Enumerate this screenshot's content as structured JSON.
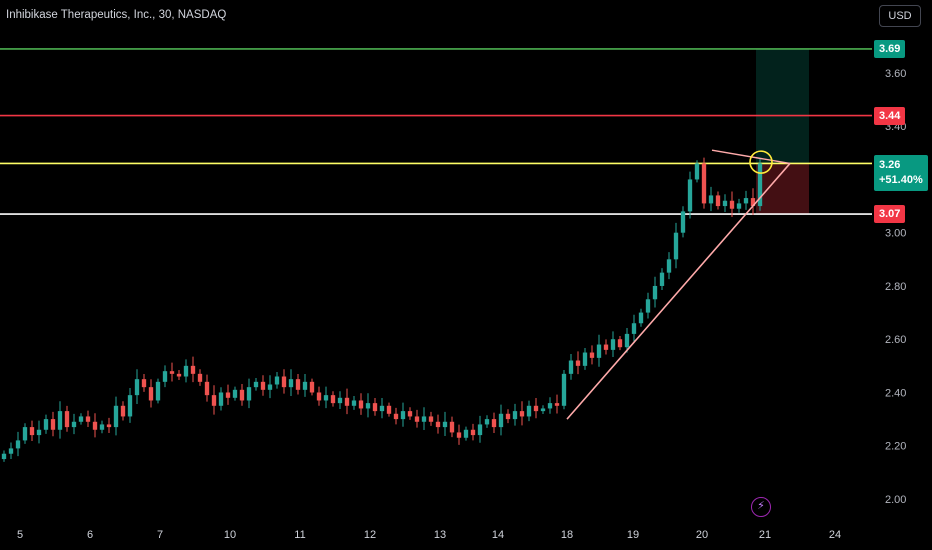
{
  "header": {
    "symbol_title": "Inhibikase Therapeutics, Inc., 30, NASDAQ",
    "currency_button": "USD"
  },
  "price_labels": {
    "target": "3.69",
    "resistance": "3.44",
    "last_price": "3.26",
    "change_percent": "+51.40%",
    "stop": "3.07"
  },
  "events": {
    "icon": "lightning-icon"
  },
  "colors": {
    "background": "#000000",
    "up": "#26a69a",
    "down": "#ef5350",
    "target_line": "#4caf50",
    "resistance_line": "#f23645",
    "last_price_line": "#ffff66",
    "stop_line": "#ffffff",
    "trendline": "#ffaaaa",
    "label_green": "#089981",
    "label_red": "#f23645"
  },
  "chart_data": {
    "type": "candlestick",
    "title": "Inhibikase Therapeutics, Inc., 30, NASDAQ",
    "currency": "USD",
    "y_ticks": [
      2.0,
      2.2,
      2.4,
      2.6,
      2.8,
      3.0,
      3.4,
      3.6
    ],
    "ylim": [
      1.9,
      3.8
    ],
    "x_ticks": [
      "5",
      "6",
      "7",
      "10",
      "11",
      "12",
      "13",
      "14",
      "18",
      "19",
      "20",
      "21",
      "24"
    ],
    "grid": false,
    "closes": [
      2.17,
      2.19,
      2.22,
      2.27,
      2.24,
      2.26,
      2.3,
      2.26,
      2.33,
      2.27,
      2.29,
      2.31,
      2.29,
      2.26,
      2.28,
      2.27,
      2.35,
      2.31,
      2.39,
      2.45,
      2.42,
      2.37,
      2.44,
      2.48,
      2.47,
      2.46,
      2.5,
      2.47,
      2.44,
      2.39,
      2.35,
      2.4,
      2.38,
      2.41,
      2.37,
      2.42,
      2.44,
      2.41,
      2.43,
      2.46,
      2.42,
      2.45,
      2.41,
      2.44,
      2.4,
      2.37,
      2.39,
      2.36,
      2.38,
      2.35,
      2.37,
      2.34,
      2.36,
      2.33,
      2.35,
      2.32,
      2.3,
      2.33,
      2.31,
      2.29,
      2.31,
      2.29,
      2.27,
      2.29,
      2.25,
      2.23,
      2.26,
      2.24,
      2.28,
      2.3,
      2.27,
      2.32,
      2.3,
      2.33,
      2.31,
      2.35,
      2.33,
      2.34,
      2.36,
      2.35,
      2.47,
      2.52,
      2.5,
      2.55,
      2.53,
      2.58,
      2.56,
      2.6,
      2.57,
      2.62,
      2.66,
      2.7,
      2.75,
      2.8,
      2.85,
      2.9,
      3.0,
      3.08,
      3.2,
      3.26,
      3.11,
      3.14,
      3.1,
      3.12,
      3.09,
      3.11,
      3.13,
      3.1,
      3.26
    ],
    "reference_lines": [
      {
        "label": "3.69",
        "value": 3.69
      },
      {
        "label": "3.44",
        "value": 3.44
      },
      {
        "label": "3.26",
        "value": 3.26
      },
      {
        "label": "3.07",
        "value": 3.07
      }
    ],
    "position": {
      "entry": 3.26,
      "target": 3.69,
      "stop": 3.07
    },
    "last_change": "+51.40%"
  }
}
